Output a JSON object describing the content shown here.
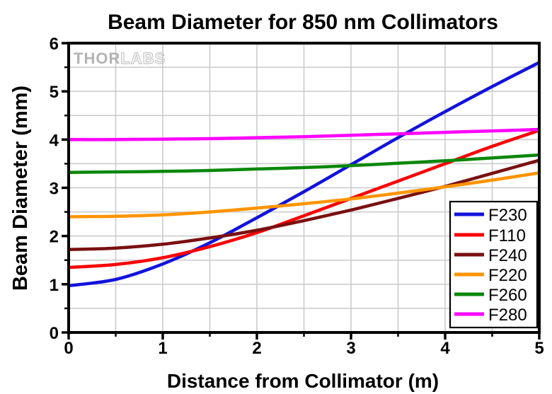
{
  "watermark": {
    "solid": "THOR",
    "outline": "LABS"
  },
  "chart_data": {
    "type": "line",
    "title": "Beam Diameter for 850 nm Collimators",
    "xlabel": "Distance from Collimator (m)",
    "ylabel": "Beam Diameter (mm)",
    "xlim": [
      0,
      5
    ],
    "ylim": [
      0,
      6
    ],
    "x_major_ticks": [
      0,
      1,
      2,
      3,
      4,
      5
    ],
    "y_major_ticks": [
      0,
      1,
      2,
      3,
      4,
      5,
      6
    ],
    "minor_tick_step": 0.5,
    "grid": true,
    "grid_step": 0.5,
    "grid_color": "#c8c8c8",
    "legend_position": "bottom-right",
    "x": [
      0,
      0.5,
      1,
      1.5,
      2,
      2.5,
      3,
      3.5,
      4,
      4.5,
      5
    ],
    "series": [
      {
        "name": "F230",
        "color": "#1212dd",
        "values": [
          0.97,
          1.1,
          1.42,
          1.86,
          2.38,
          2.92,
          3.48,
          4.04,
          4.58,
          5.1,
          5.6
        ]
      },
      {
        "name": "F110",
        "color": "#fb0000",
        "values": [
          1.35,
          1.41,
          1.55,
          1.78,
          2.07,
          2.42,
          2.78,
          3.14,
          3.5,
          3.86,
          4.19
        ]
      },
      {
        "name": "F240",
        "color": "#7a1010",
        "values": [
          1.72,
          1.75,
          1.83,
          1.96,
          2.12,
          2.32,
          2.54,
          2.78,
          3.03,
          3.3,
          3.57
        ]
      },
      {
        "name": "F220",
        "color": "#ff9400",
        "values": [
          2.4,
          2.41,
          2.44,
          2.5,
          2.58,
          2.67,
          2.77,
          2.89,
          3.02,
          3.16,
          3.31
        ]
      },
      {
        "name": "F260",
        "color": "#0a870a",
        "values": [
          3.32,
          3.33,
          3.34,
          3.36,
          3.39,
          3.42,
          3.46,
          3.51,
          3.56,
          3.62,
          3.68
        ]
      },
      {
        "name": "F280",
        "color": "#ff00ff",
        "values": [
          4.0,
          4.0,
          4.01,
          4.02,
          4.04,
          4.06,
          4.09,
          4.12,
          4.15,
          4.18,
          4.21
        ]
      }
    ]
  }
}
